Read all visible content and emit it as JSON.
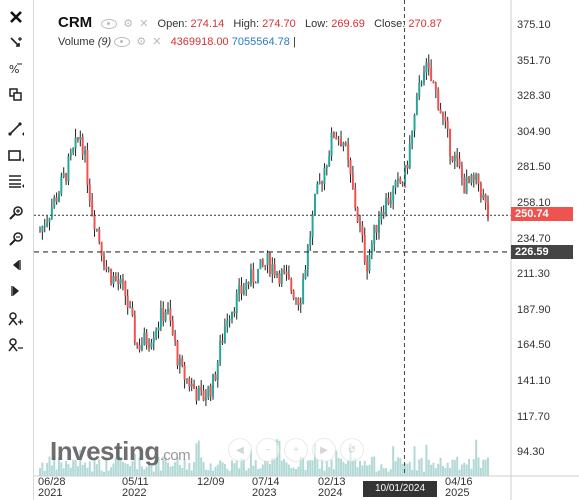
{
  "legend": {
    "symbol": "CRM",
    "open_label": "Open:",
    "open": "274.14",
    "high_label": "High:",
    "high": "274.70",
    "low_label": "Low:",
    "low": "269.69",
    "close_label": "Close:",
    "close": "270.87",
    "volume_label": "Volume",
    "volume_period": "(9)",
    "volume_value_1": "4369918.00",
    "volume_value_2": "7055564.78",
    "cursor_mark": "|"
  },
  "y_axis": [
    "375.10",
    "351.70",
    "328.30",
    "304.90",
    "281.50",
    "258.10",
    "234.70",
    "211.30",
    "187.90",
    "164.50",
    "141.10",
    "117.70",
    "94.30"
  ],
  "x_axis": [
    {
      "year": "06/28",
      "sub": "2021"
    },
    {
      "year": "05/11",
      "sub": "2022"
    },
    {
      "year": "12/09",
      "sub": ""
    },
    {
      "year": "07/14",
      "sub": "2023"
    },
    {
      "year": "02/13",
      "sub": "2024"
    },
    {
      "year": "04/16",
      "sub": "2025"
    }
  ],
  "price_tag_current": "250.74",
  "price_tag_line": "226.59",
  "crosshair_date": "10/01/2024",
  "watermark": {
    "brand": "Investing",
    "suffix": ".com"
  },
  "colors": {
    "up": "#26a69a",
    "down": "#ef5350",
    "wick": "#222222",
    "volume": "#a8d5d2",
    "current_tag": "#ef5350",
    "line_tag": "#444444"
  },
  "chart_data": {
    "type": "candlestick",
    "series_name": "CRM",
    "ylim": [
      94.3,
      380
    ],
    "ohlc_points": [
      [
        "2021-06-28",
        240
      ],
      [
        "2021-09-01",
        268
      ],
      [
        "2021-11-09",
        305
      ],
      [
        "2021-12-15",
        255
      ],
      [
        "2022-02-01",
        215
      ],
      [
        "2022-04-01",
        200
      ],
      [
        "2022-05-11",
        165
      ],
      [
        "2022-06-20",
        170
      ],
      [
        "2022-08-15",
        190
      ],
      [
        "2022-10-01",
        148
      ],
      [
        "2022-12-09",
        130
      ],
      [
        "2023-01-15",
        140
      ],
      [
        "2023-03-01",
        185
      ],
      [
        "2023-05-01",
        205
      ],
      [
        "2023-07-14",
        220
      ],
      [
        "2023-09-01",
        210
      ],
      [
        "2023-10-25",
        195
      ],
      [
        "2023-12-15",
        260
      ],
      [
        "2024-02-13",
        305
      ],
      [
        "2024-03-15",
        300
      ],
      [
        "2024-05-30",
        218
      ],
      [
        "2024-07-15",
        255
      ],
      [
        "2024-10-01",
        275
      ],
      [
        "2024-12-03",
        350
      ],
      [
        "2025-01-15",
        330
      ],
      [
        "2025-02-20",
        300
      ],
      [
        "2025-04-16",
        270
      ],
      [
        "2025-06-01",
        272
      ],
      [
        "2025-07-01",
        250
      ]
    ],
    "last_close": 250.74,
    "horizontal_line": 226.59
  }
}
